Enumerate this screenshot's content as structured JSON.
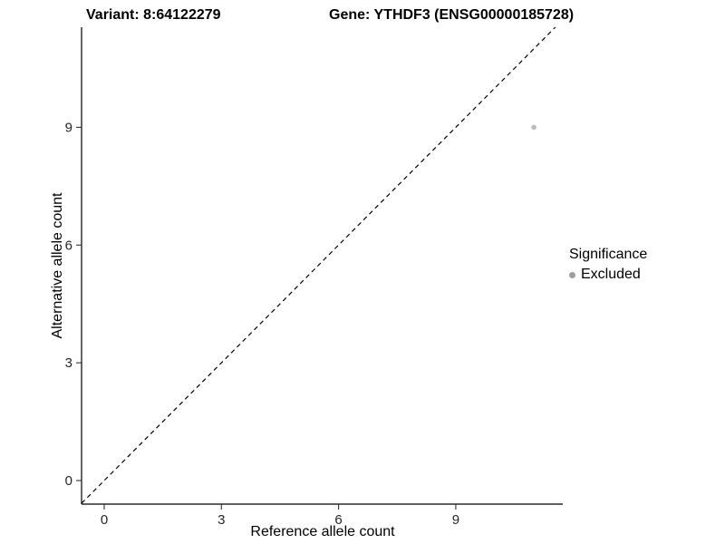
{
  "titles": {
    "variant": "Variant: 8:64122279",
    "gene": "Gene: YTHDF3 (ENSG00000185728)"
  },
  "chart_data": {
    "type": "scatter",
    "title": "Variant: 8:64122279    Gene: YTHDF3 (ENSG00000185728)",
    "xlabel": "Reference allele count",
    "ylabel": "Alternative allele count",
    "xlim": [
      -0.58,
      11.74
    ],
    "ylim": [
      -0.6,
      11.55
    ],
    "xticks": [
      0,
      3,
      6,
      9
    ],
    "yticks": [
      0,
      3,
      6,
      9
    ],
    "grid": false,
    "points": [
      {
        "x": 11,
        "y": 9,
        "series": "Excluded"
      }
    ],
    "reference_line": {
      "kind": "identity",
      "slope": 1,
      "intercept": 0,
      "style": "dashed",
      "color": "#000000"
    },
    "legend": {
      "title": "Significance",
      "position": "right",
      "entries": [
        {
          "label": "Excluded",
          "color": "#9e9e9e"
        }
      ]
    },
    "colors": {
      "point": "#bdbdbd",
      "axis": "#000000"
    }
  }
}
